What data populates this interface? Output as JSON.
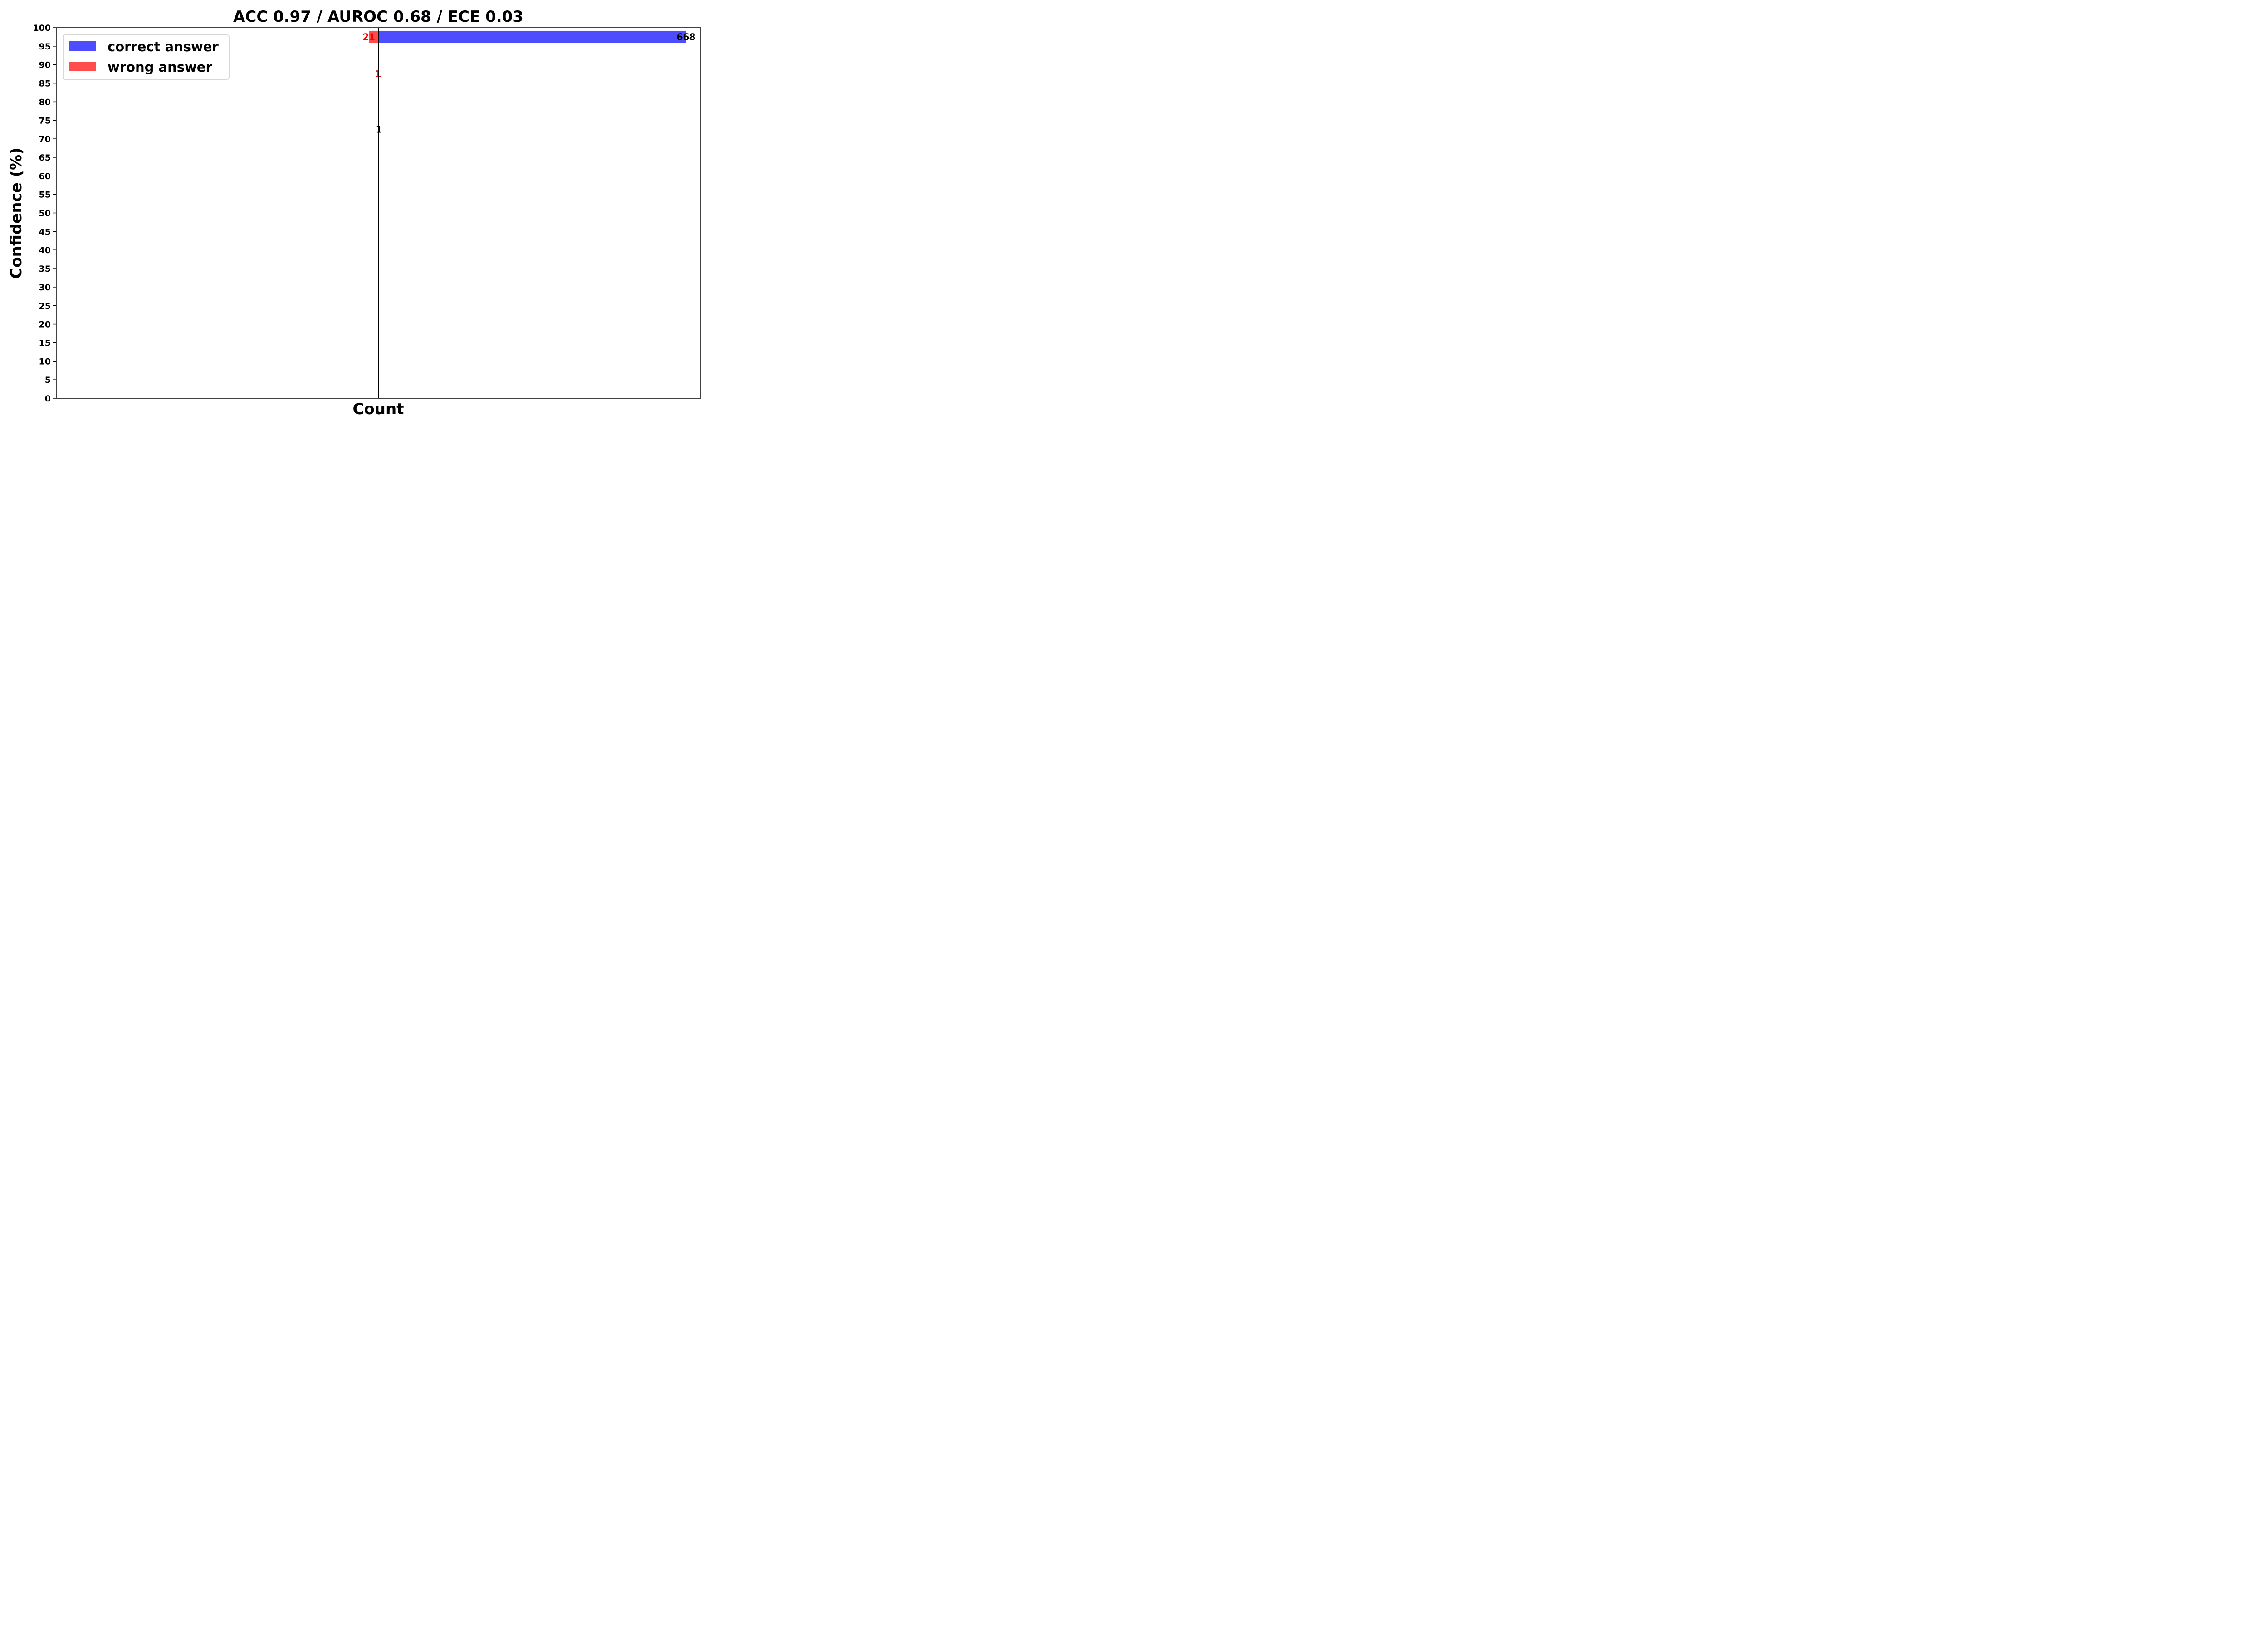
{
  "chart_data": {
    "type": "bar",
    "orientation": "horizontal-diverging",
    "title": "ACC 0.97 / AUROC 0.68 / ECE 0.03",
    "xlabel": "Count",
    "ylabel": "Confidence (%)",
    "ylim": [
      0,
      100
    ],
    "yticks": [
      0,
      5,
      10,
      15,
      20,
      25,
      30,
      35,
      40,
      45,
      50,
      55,
      60,
      65,
      70,
      75,
      80,
      85,
      90,
      95,
      100
    ],
    "xlim": [
      -700,
      700
    ],
    "grid": false,
    "legend_position": "top-left",
    "bin_width": 3.3,
    "series": [
      {
        "name": "correct answer",
        "color": "#4d4dff",
        "direction": "right",
        "label_color": "#000000",
        "bars": [
          {
            "confidence": 97.5,
            "count": 668,
            "label": "668"
          },
          {
            "confidence": 72.5,
            "count": 1,
            "label": "1"
          }
        ]
      },
      {
        "name": "wrong answer",
        "color": "#ff4d4d",
        "direction": "left",
        "label_color": "#ff0000",
        "bars": [
          {
            "confidence": 97.5,
            "count": 21,
            "label": "21"
          },
          {
            "confidence": 87.5,
            "count": 1,
            "label": "1"
          }
        ]
      }
    ]
  }
}
